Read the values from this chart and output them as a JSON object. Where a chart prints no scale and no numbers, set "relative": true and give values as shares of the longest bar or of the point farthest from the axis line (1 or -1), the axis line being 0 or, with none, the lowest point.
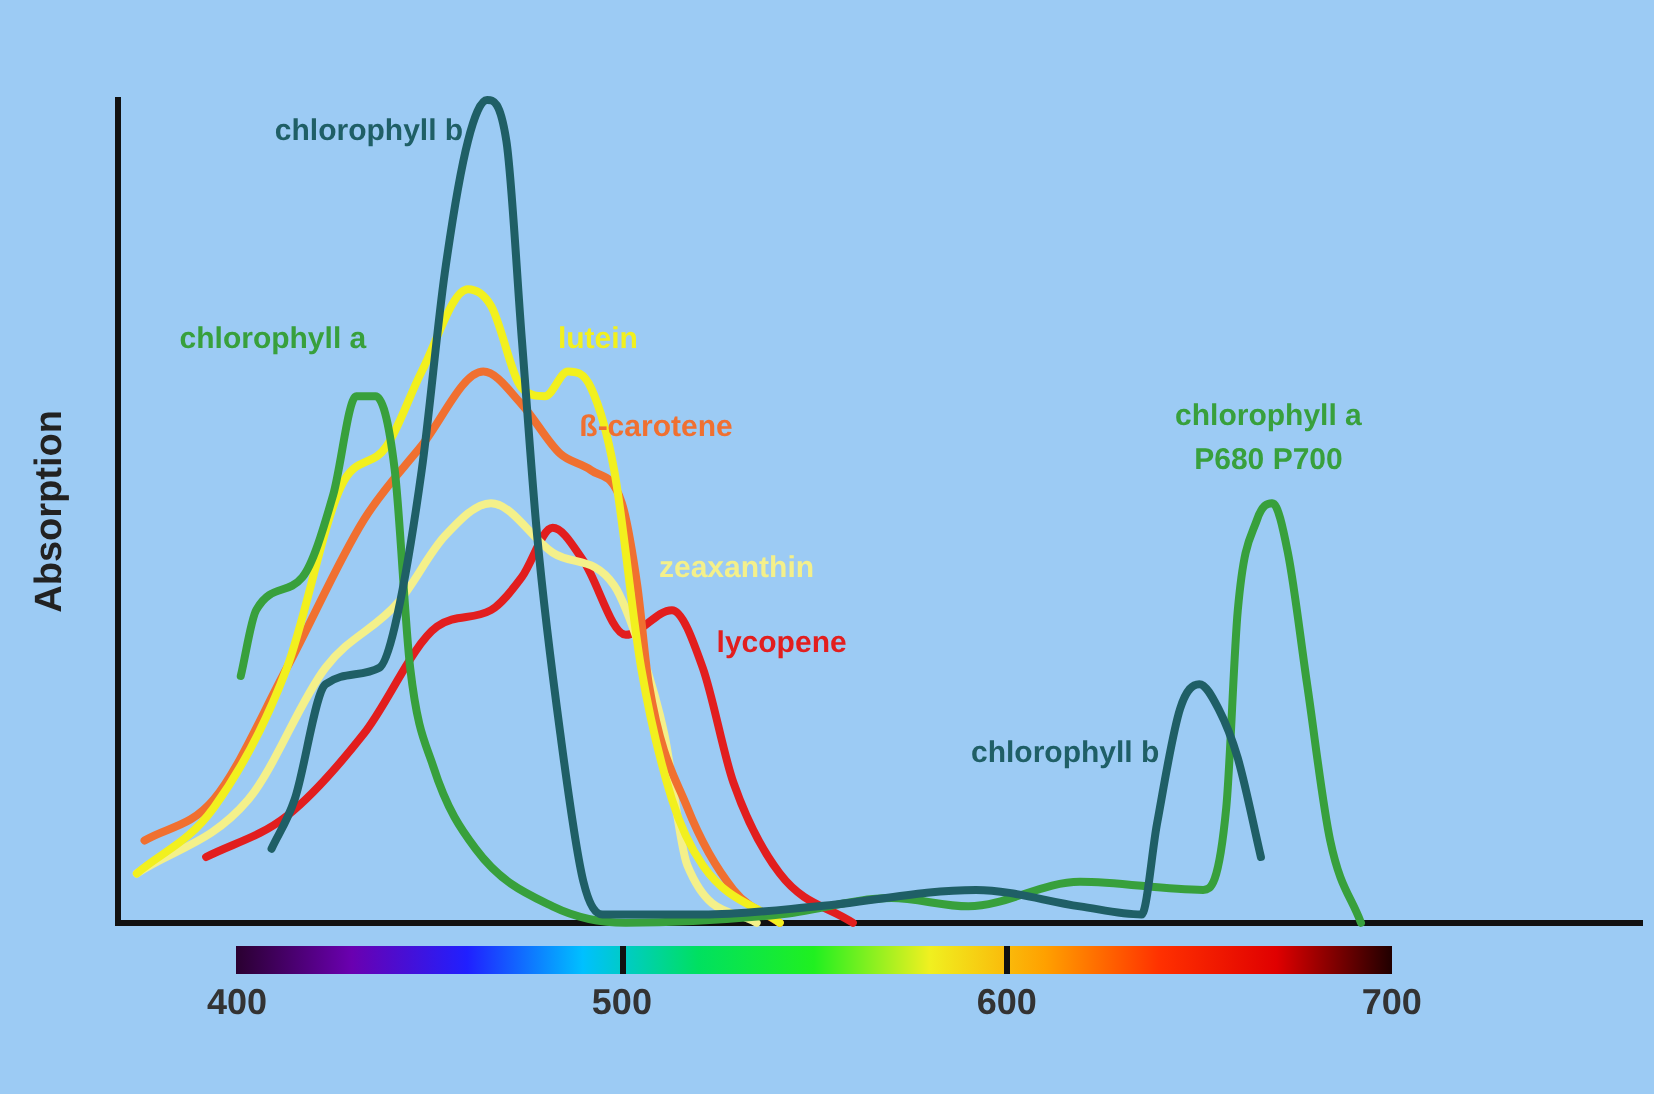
{
  "chart_data": {
    "type": "line",
    "ylabel": "Absorption",
    "relative": true,
    "xlim": [
      369,
      765
    ],
    "xticks": [
      400,
      500,
      600,
      700
    ],
    "grid": false,
    "legend": false,
    "marker": "none",
    "line_style": "solid",
    "series": [
      {
        "name": "chlorophyll b",
        "color": "#1f5f66",
        "x": [
          409,
          415,
          423,
          437,
          441,
          448,
          454,
          460,
          465,
          470,
          474,
          478,
          484,
          490,
          495,
          521,
          551,
          592,
          619,
          635,
          639,
          645,
          650,
          655,
          660,
          666
        ],
        "values": [
          0.09,
          0.15,
          0.29,
          0.31,
          0.36,
          0.55,
          0.79,
          0.95,
          1.0,
          0.95,
          0.71,
          0.47,
          0.23,
          0.05,
          0.01,
          0.01,
          0.02,
          0.04,
          0.02,
          0.01,
          0.12,
          0.26,
          0.29,
          0.26,
          0.2,
          0.08
        ]
      },
      {
        "name": "chlorophyll a",
        "color": "#38a03c",
        "x": [
          401,
          405,
          417,
          425,
          431,
          436,
          441,
          445,
          451,
          462,
          482,
          501,
          541,
          570,
          590,
          619,
          651,
          657,
          660,
          665,
          669,
          673,
          678,
          684,
          692
        ],
        "values": [
          0.3,
          0.38,
          0.42,
          0.52,
          0.64,
          0.64,
          0.55,
          0.31,
          0.19,
          0.09,
          0.02,
          0,
          0.01,
          0.03,
          0.02,
          0.05,
          0.04,
          0.14,
          0.38,
          0.49,
          0.51,
          0.45,
          0.29,
          0.1,
          0
        ]
      },
      {
        "name": "lutein",
        "color": "#f2f01e",
        "x": [
          374,
          394,
          413,
          427,
          439,
          448,
          460,
          466,
          474,
          480,
          486,
          492,
          498,
          505,
          513,
          521,
          541
        ],
        "values": [
          0.06,
          0.14,
          0.31,
          0.53,
          0.58,
          0.67,
          0.77,
          0.75,
          0.65,
          0.64,
          0.67,
          0.65,
          0.55,
          0.31,
          0.15,
          0.07,
          0
        ]
      },
      {
        "name": "ß-carotene",
        "color": "#f07030",
        "x": [
          376,
          394,
          413,
          433,
          448,
          464,
          474,
          484,
          492,
          500,
          504,
          507,
          517,
          529,
          541
        ],
        "values": [
          0.1,
          0.15,
          0.31,
          0.49,
          0.58,
          0.67,
          0.63,
          0.57,
          0.55,
          0.51,
          0.41,
          0.29,
          0.14,
          0.04,
          0
        ]
      },
      {
        "name": "zeaxanthin",
        "color": "#f4f08a",
        "x": [
          374,
          403,
          423,
          442,
          454,
          466,
          482,
          498,
          505,
          511,
          517,
          535
        ],
        "values": [
          0.06,
          0.15,
          0.31,
          0.39,
          0.47,
          0.51,
          0.45,
          0.41,
          0.33,
          0.23,
          0.07,
          0
        ]
      },
      {
        "name": "lycopene",
        "color": "#e21e1e",
        "x": [
          392,
          413,
          433,
          452,
          466,
          474,
          482,
          490,
          501,
          513,
          521,
          529,
          541,
          560
        ],
        "values": [
          0.08,
          0.13,
          0.23,
          0.36,
          0.38,
          0.42,
          0.48,
          0.44,
          0.35,
          0.38,
          0.31,
          0.17,
          0.06,
          0
        ]
      }
    ],
    "annotations": [
      {
        "text": "chlorophyll b",
        "x": 650,
        "y": 0.29
      },
      {
        "text": "chlorophyll a\nP680 P700",
        "x": 669,
        "y": 0.51
      }
    ]
  }
}
